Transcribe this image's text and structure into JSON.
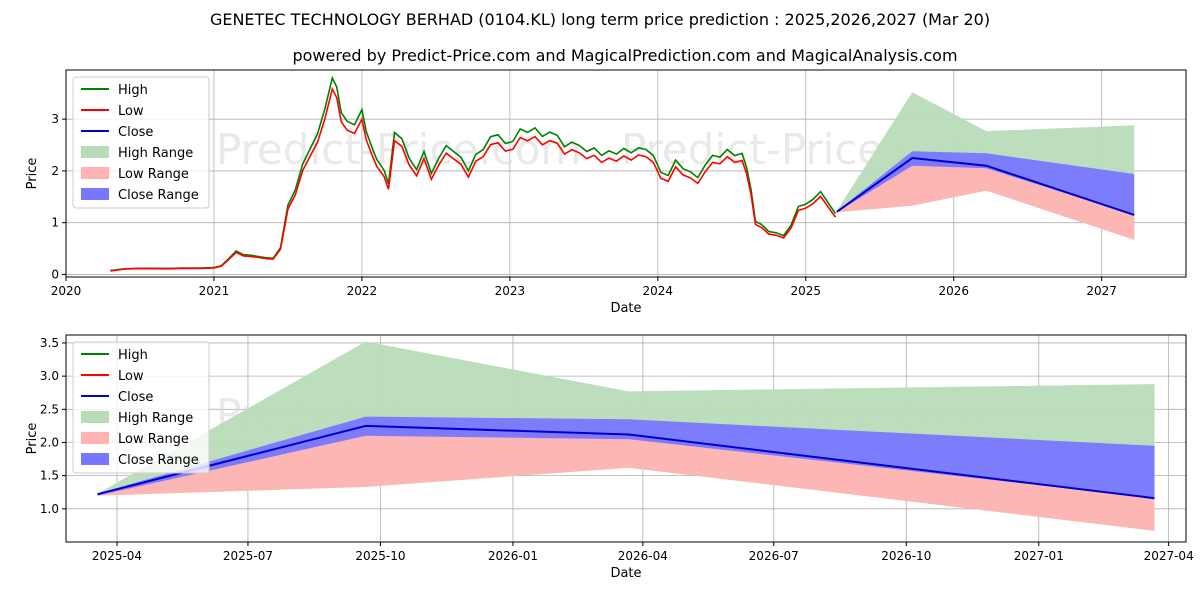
{
  "title": "GENETEC TECHNOLOGY BERHAD (0104.KL) long term price prediction : 2025,2026,2027 (Mar 20)",
  "subtitle": "powered by Predict-Price.com and MagicalPrediction.com and MagicalAnalysis.com",
  "watermark": "Predict-Price.com",
  "colors": {
    "high": "#008000",
    "low": "#ff0000",
    "close": "#0000cc",
    "high_range": "#b8dcb8",
    "low_range": "#ffb3b3",
    "close_range": "#7777ff"
  },
  "chart_data": [
    {
      "type": "line",
      "title": "GENETEC TECHNOLOGY BERHAD (0104.KL) long term price prediction : 2025,2026,2027 (Mar 20)",
      "xlabel": "Date",
      "ylabel": "Price",
      "xlim": [
        2020.0,
        2027.57
      ],
      "ylim": [
        -0.05,
        3.95
      ],
      "grid": true,
      "legend_position": "upper-left",
      "x_ticks": [
        {
          "value": 2020,
          "label": "2020"
        },
        {
          "value": 2021,
          "label": "2021"
        },
        {
          "value": 2022,
          "label": "2022"
        },
        {
          "value": 2023,
          "label": "2023"
        },
        {
          "value": 2024,
          "label": "2024"
        },
        {
          "value": 2025,
          "label": "2025"
        },
        {
          "value": 2026,
          "label": "2026"
        },
        {
          "value": 2027,
          "label": "2027"
        }
      ],
      "y_ticks": [
        {
          "value": 0,
          "label": "0"
        },
        {
          "value": 1,
          "label": "1"
        },
        {
          "value": 2,
          "label": "2"
        },
        {
          "value": 3,
          "label": "3"
        }
      ],
      "legend": [
        "High",
        "Low",
        "Close",
        "High Range",
        "Low Range",
        "Close Range"
      ],
      "history": {
        "x": [
          2020.3,
          2020.4,
          2020.5,
          2020.6,
          2020.7,
          2020.8,
          2020.9,
          2021.0,
          2021.05,
          2021.1,
          2021.15,
          2021.2,
          2021.25,
          2021.3,
          2021.35,
          2021.4,
          2021.45,
          2021.5,
          2021.55,
          2021.6,
          2021.65,
          2021.7,
          2021.75,
          2021.8,
          2021.83,
          2021.86,
          2021.9,
          2021.95,
          2022.0,
          2022.03,
          2022.07,
          2022.1,
          2022.15,
          2022.18,
          2022.22,
          2022.27,
          2022.32,
          2022.37,
          2022.42,
          2022.47,
          2022.52,
          2022.57,
          2022.62,
          2022.67,
          2022.72,
          2022.77,
          2022.82,
          2022.87,
          2022.92,
          2022.97,
          2023.02,
          2023.07,
          2023.12,
          2023.17,
          2023.22,
          2023.27,
          2023.32,
          2023.37,
          2023.42,
          2023.47,
          2023.52,
          2023.57,
          2023.62,
          2023.67,
          2023.72,
          2023.77,
          2023.82,
          2023.87,
          2023.92,
          2023.97,
          2024.02,
          2024.07,
          2024.12,
          2024.17,
          2024.22,
          2024.27,
          2024.32,
          2024.37,
          2024.42,
          2024.47,
          2024.52,
          2024.57,
          2024.6,
          2024.63,
          2024.66,
          2024.7,
          2024.75,
          2024.8,
          2024.85,
          2024.9,
          2024.95,
          2025.0,
          2025.05,
          2025.1,
          2025.15,
          2025.2
        ],
        "close": [
          0.08,
          0.1,
          0.11,
          0.11,
          0.11,
          0.12,
          0.12,
          0.13,
          0.17,
          0.3,
          0.45,
          0.38,
          0.35,
          0.33,
          0.31,
          0.3,
          0.5,
          1.3,
          1.6,
          2.1,
          2.4,
          2.7,
          3.2,
          3.6,
          3.45,
          3.0,
          2.85,
          2.8,
          3.1,
          2.7,
          2.4,
          2.2,
          2.0,
          1.75,
          2.6,
          2.5,
          2.15,
          1.95,
          2.3,
          1.9,
          2.2,
          2.45,
          2.35,
          2.25,
          2.0,
          2.2,
          2.3,
          2.55,
          2.6,
          2.45,
          2.5,
          2.75,
          2.7,
          2.8,
          2.65,
          2.75,
          2.55,
          2.35,
          2.45,
          2.4,
          2.3,
          2.38,
          2.25,
          2.35,
          2.3,
          2.42,
          2.35,
          2.32,
          2.3,
          2.2,
          1.9,
          1.85,
          2.15,
          2.0,
          1.95,
          1.85,
          2.1,
          2.3,
          2.15,
          2.3,
          2.2,
          2.25,
          2.0,
          1.6,
          1.0,
          0.95,
          0.82,
          0.8,
          0.75,
          0.9,
          1.25,
          1.3,
          1.4,
          1.55,
          1.35,
          1.15
        ]
      },
      "forecast": {
        "x": [
          2025.21,
          2025.72,
          2026.22,
          2027.22
        ],
        "close": [
          1.21,
          2.25,
          2.1,
          1.15
        ],
        "high_range_upper": [
          1.23,
          3.52,
          2.77,
          2.88
        ],
        "high_range_lower": [
          1.2,
          1.33,
          1.62,
          0.67
        ],
        "close_range_upper": [
          1.22,
          2.38,
          2.34,
          1.94
        ],
        "close_range_lower": [
          1.2,
          2.1,
          2.05,
          1.15
        ],
        "low_range_upper": [
          1.22,
          2.25,
          2.1,
          1.15
        ],
        "low_range_lower": [
          1.2,
          1.33,
          1.62,
          0.67
        ]
      }
    },
    {
      "type": "area",
      "xlabel": "Date",
      "ylabel": "Price",
      "xlim": [
        2025.15,
        2027.28
      ],
      "ylim": [
        0.5,
        3.62
      ],
      "grid": true,
      "legend_position": "upper-left",
      "x_ticks": [
        {
          "value": 2025.247,
          "label": "2025-04"
        },
        {
          "value": 2025.496,
          "label": "2025-07"
        },
        {
          "value": 2025.748,
          "label": "2025-10"
        },
        {
          "value": 2026.0,
          "label": "2026-01"
        },
        {
          "value": 2026.247,
          "label": "2026-04"
        },
        {
          "value": 2026.496,
          "label": "2026-07"
        },
        {
          "value": 2026.748,
          "label": "2026-10"
        },
        {
          "value": 2027.0,
          "label": "2027-01"
        },
        {
          "value": 2027.247,
          "label": "2027-04"
        }
      ],
      "y_ticks": [
        {
          "value": 1.0,
          "label": "1.0"
        },
        {
          "value": 1.5,
          "label": "1.5"
        },
        {
          "value": 2.0,
          "label": "2.0"
        },
        {
          "value": 2.5,
          "label": "2.5"
        },
        {
          "value": 3.0,
          "label": "3.0"
        },
        {
          "value": 3.5,
          "label": "3.5"
        }
      ],
      "legend": [
        "High",
        "Low",
        "Close",
        "High Range",
        "Low Range",
        "Close Range"
      ],
      "forecast": {
        "x": [
          2025.21,
          2025.72,
          2026.22,
          2027.22
        ],
        "close": [
          1.22,
          2.25,
          2.12,
          1.16
        ],
        "high_range_upper": [
          1.23,
          3.52,
          2.77,
          2.88
        ],
        "high_range_lower": [
          1.2,
          1.33,
          1.62,
          0.67
        ],
        "close_range_upper": [
          1.23,
          2.39,
          2.35,
          1.95
        ],
        "close_range_lower": [
          1.2,
          2.1,
          2.05,
          1.16
        ],
        "low_range_upper": [
          1.22,
          2.25,
          2.12,
          1.16
        ],
        "low_range_lower": [
          1.2,
          1.33,
          1.62,
          0.67
        ]
      }
    }
  ]
}
